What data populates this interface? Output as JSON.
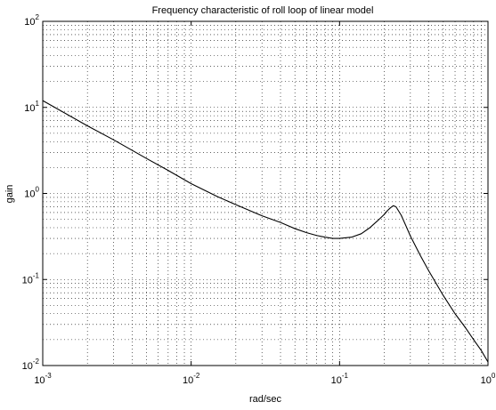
{
  "chart_data": {
    "type": "line",
    "title": "Frequency characteristic of roll loop of linear  model",
    "xlabel": "rad/sec",
    "ylabel": "gain",
    "xscale": "log",
    "yscale": "log",
    "xlim": [
      0.001,
      1
    ],
    "ylim": [
      0.01,
      100
    ],
    "grid": true,
    "x_ticks": [
      0.001,
      0.01,
      0.1,
      1
    ],
    "y_ticks": [
      0.01,
      0.1,
      1,
      10,
      100
    ],
    "x_tick_labels": [
      {
        "base": "10",
        "exp": "-3"
      },
      {
        "base": "10",
        "exp": "-2"
      },
      {
        "base": "10",
        "exp": "-1"
      },
      {
        "base": "10",
        "exp": "0"
      }
    ],
    "y_tick_labels": [
      {
        "base": "10",
        "exp": "-2"
      },
      {
        "base": "10",
        "exp": "-1"
      },
      {
        "base": "10",
        "exp": "0"
      },
      {
        "base": "10",
        "exp": "1"
      },
      {
        "base": "10",
        "exp": "2"
      }
    ],
    "series": [
      {
        "color": "#000000",
        "x": [
          0.001,
          0.002,
          0.003,
          0.005,
          0.007,
          0.01,
          0.015,
          0.02,
          0.03,
          0.04,
          0.05,
          0.06,
          0.07,
          0.08,
          0.09,
          0.1,
          0.12,
          0.14,
          0.16,
          0.18,
          0.2,
          0.21,
          0.22,
          0.23,
          0.24,
          0.26,
          0.28,
          0.3,
          0.35,
          0.4,
          0.5,
          0.6,
          0.7,
          0.8,
          0.9,
          1.0
        ],
        "y": [
          12.0,
          6.1,
          4.2,
          2.55,
          1.85,
          1.3,
          0.92,
          0.74,
          0.55,
          0.46,
          0.39,
          0.35,
          0.325,
          0.31,
          0.3,
          0.3,
          0.31,
          0.34,
          0.4,
          0.48,
          0.57,
          0.63,
          0.68,
          0.72,
          0.7,
          0.56,
          0.42,
          0.32,
          0.19,
          0.125,
          0.065,
          0.04,
          0.028,
          0.02,
          0.015,
          0.011
        ]
      }
    ]
  }
}
